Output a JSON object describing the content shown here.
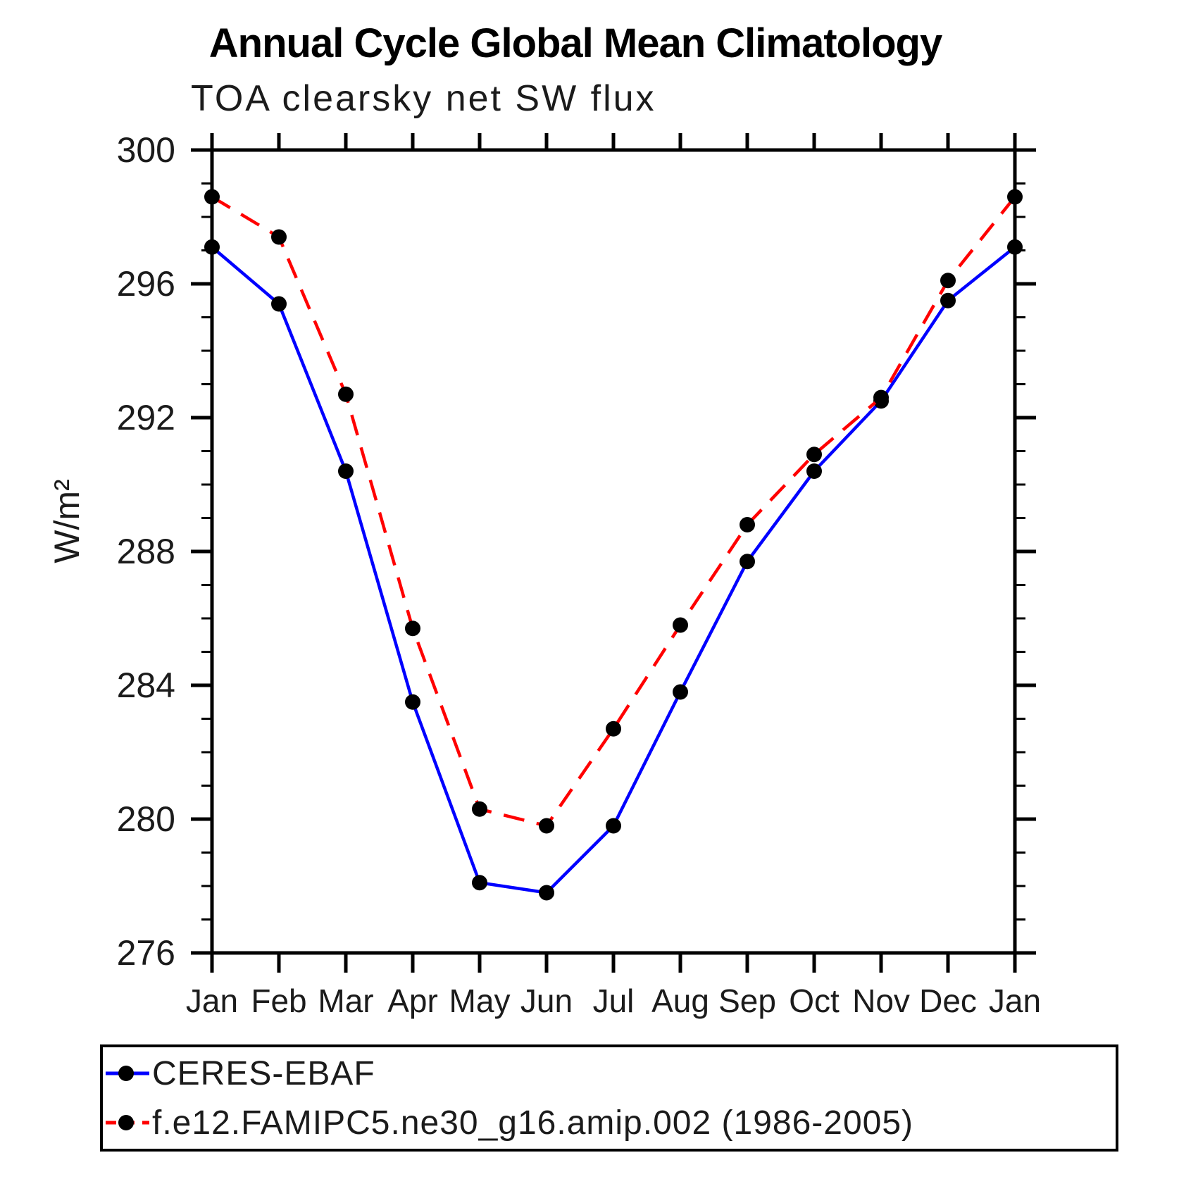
{
  "chart_data": {
    "type": "line",
    "title": "Annual Cycle Global Mean Climatology",
    "subtitle": "TOA clearsky net SW flux",
    "ylabel": "W/m²",
    "xlabel": "",
    "categories": [
      "Jan",
      "Feb",
      "Mar",
      "Apr",
      "May",
      "Jun",
      "Jul",
      "Aug",
      "Sep",
      "Oct",
      "Nov",
      "Dec",
      "Jan"
    ],
    "ylim": [
      276,
      300
    ],
    "ytick_major": [
      300,
      296,
      292,
      288,
      284,
      280,
      276
    ],
    "ytick_minor_step": 1,
    "grid": false,
    "legend_position": "bottom-left-box",
    "axis_color": "#000000",
    "series": [
      {
        "name": "CERES-EBAF",
        "color": "#0000ff",
        "style": "solid",
        "marker": "circle",
        "marker_color": "#000000",
        "values": [
          297.1,
          295.4,
          290.4,
          283.5,
          278.1,
          277.8,
          279.8,
          283.8,
          287.7,
          290.4,
          292.5,
          295.5,
          297.1
        ]
      },
      {
        "name": "f.e12.FAMIPC5.ne30_g16.amip.002 (1986-2005)",
        "color": "#ff0000",
        "style": "dashed",
        "marker": "circle",
        "marker_color": "#000000",
        "values": [
          298.6,
          297.4,
          292.7,
          285.7,
          280.3,
          279.8,
          282.7,
          285.8,
          288.8,
          290.9,
          292.6,
          296.1,
          298.6
        ]
      }
    ]
  }
}
